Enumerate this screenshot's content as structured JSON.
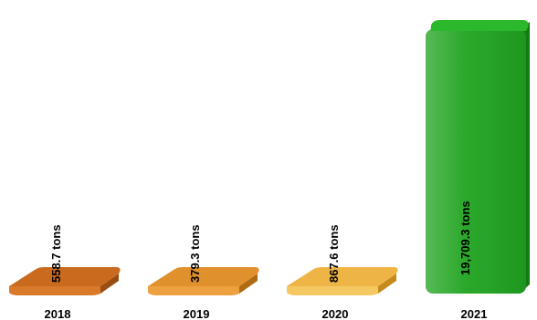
{
  "chart_data": {
    "type": "bar",
    "title": "",
    "xlabel": "",
    "ylabel": "",
    "categories": [
      "2018",
      "2019",
      "2020",
      "2021"
    ],
    "values": [
      558.7,
      379.3,
      867.6,
      19709.3
    ],
    "data_labels": [
      "558.7  tons",
      "379.3  tons",
      "867.6  tons",
      "19,709.3  tons"
    ],
    "bar_colors": [
      {
        "top": "#c96a1e",
        "front": "#d87a2a",
        "side": "#9a4d10"
      },
      {
        "top": "#e0902c",
        "front": "#eda040",
        "side": "#b06a14"
      },
      {
        "top": "#eeb446",
        "front": "#f6c862",
        "side": "#c48a1c"
      },
      {
        "top": "#2cb82c",
        "front": "#1fa31f",
        "side": "#147a14"
      }
    ],
    "grid": false,
    "legend": "none",
    "ylim": [
      0,
      19709.3
    ]
  }
}
